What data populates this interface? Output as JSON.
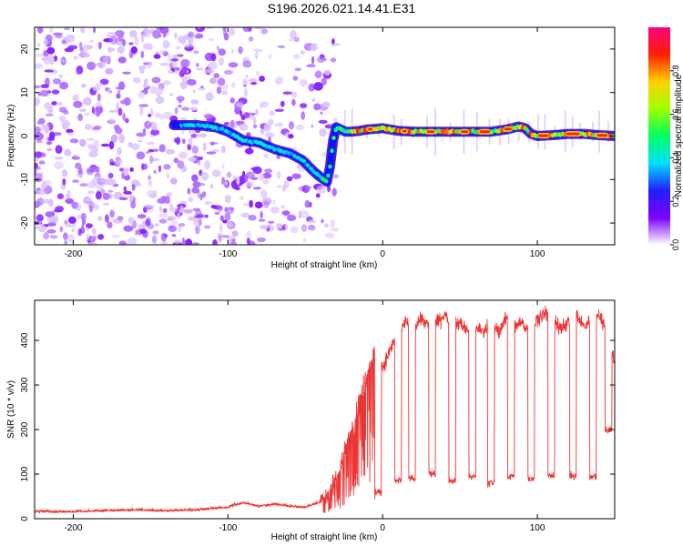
{
  "figure_title": "S196.2026.021.14.41.E31",
  "chart_data": [
    {
      "type": "heatmap",
      "title": "",
      "xlabel": "Height of straight line (km)",
      "ylabel": "Frequency (Hz)",
      "xlim": [
        -225,
        150
      ],
      "ylim": [
        -25,
        25
      ],
      "xticks": [
        -200,
        -100,
        0,
        100
      ],
      "yticks": [
        -20,
        -10,
        0,
        10,
        20
      ],
      "grid": false,
      "ridge": {
        "x": [
          -135,
          -120,
          -108,
          -100,
          -90,
          -80,
          -70,
          -60,
          -52,
          -45,
          -40,
          -36,
          -34,
          -32,
          -30,
          -27,
          -24,
          -20,
          -15,
          -10,
          0,
          10,
          20,
          30,
          40,
          50,
          60,
          70,
          80,
          88,
          92,
          96,
          100,
          110,
          120,
          130,
          140,
          150
        ],
        "y": [
          2.5,
          2.5,
          2.0,
          1.0,
          -1.0,
          -1.5,
          -3.0,
          -4.0,
          -5.5,
          -8.0,
          -9.5,
          -10.5,
          -7.0,
          -1.0,
          2.0,
          1.5,
          1.0,
          1.0,
          1.2,
          1.5,
          1.8,
          1.2,
          1.0,
          1.0,
          1.0,
          1.0,
          1.0,
          1.0,
          1.5,
          2.2,
          1.8,
          0.5,
          0.0,
          0.2,
          0.5,
          0.5,
          0.2,
          0.0
        ]
      },
      "colorbar": {
        "label": "Normalized spectral amplitude",
        "range": [
          0,
          1
        ],
        "ticks": [
          "0.0",
          "0.2",
          "0.4",
          "0.6",
          "0.8"
        ],
        "colormap": [
          "#ffffff",
          "#7d00ff",
          "#2020ff",
          "#00e0ff",
          "#00ff60",
          "#a0ff00",
          "#ffd000",
          "#ff2000",
          "#ff0080"
        ]
      }
    },
    {
      "type": "line",
      "title": "",
      "xlabel": "Height of straight line (km)",
      "ylabel": "SNR (10 * v/v)",
      "xlim": [
        -225,
        150
      ],
      "ylim": [
        0,
        490
      ],
      "xticks": [
        -200,
        -100,
        0,
        100
      ],
      "yticks": [
        0,
        100,
        200,
        300,
        400
      ],
      "grid": false,
      "series": [
        {
          "name": "SNR",
          "color": "#ee3333",
          "x": [
            -225,
            -200,
            -180,
            -160,
            -140,
            -120,
            -100,
            -90,
            -80,
            -70,
            -60,
            -50,
            -40,
            -35,
            -30,
            -25,
            -20,
            -15,
            -10,
            -5,
            0,
            5,
            10,
            15,
            20,
            25,
            30,
            35,
            40,
            45,
            50,
            55,
            60,
            65,
            70,
            75,
            80,
            85,
            90,
            95,
            100,
            105,
            110,
            115,
            120,
            125,
            130,
            135,
            140,
            145,
            150
          ],
          "y": [
            18,
            18,
            20,
            22,
            20,
            22,
            28,
            38,
            30,
            35,
            30,
            28,
            40,
            60,
            90,
            140,
            200,
            260,
            330,
            380,
            340,
            380,
            420,
            440,
            430,
            450,
            430,
            440,
            460,
            430,
            440,
            420,
            430,
            420,
            440,
            420,
            450,
            430,
            440,
            420,
            450,
            460,
            440,
            430,
            440,
            460,
            430,
            450,
            460,
            420,
            350
          ]
        }
      ],
      "dropouts": {
        "x": [
          -3,
          10,
          19,
          32,
          45,
          58,
          70,
          83,
          96,
          109,
          123,
          136,
          146
        ],
        "y": [
          60,
          85,
          90,
          100,
          85,
          95,
          80,
          95,
          90,
          95,
          95,
          95,
          200
        ]
      }
    }
  ]
}
